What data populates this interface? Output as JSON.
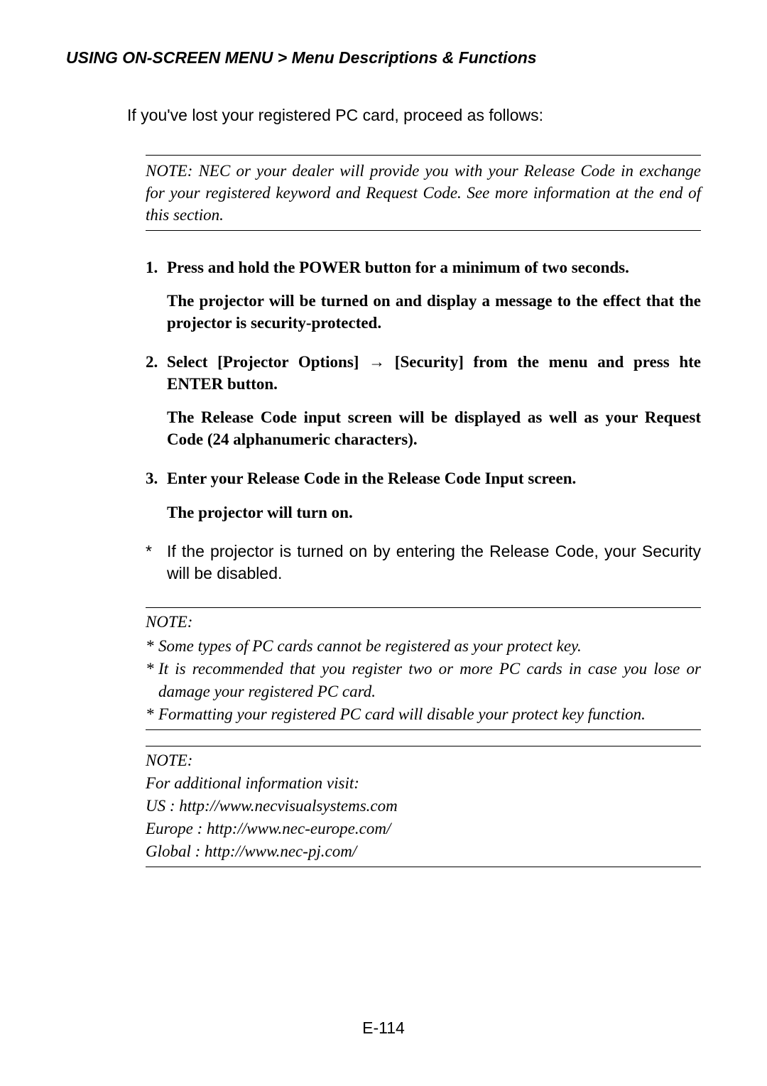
{
  "header": {
    "text": "USING ON-SCREEN MENU > Menu Descriptions & Functions"
  },
  "intro": "If you've lost your registered PC card, proceed as follows:",
  "note1": "NOTE: NEC or your dealer will provide you with your Release Code in exchange for your registered keyword and Request Code. See more information at the end of this section.",
  "steps": [
    {
      "num": "1.",
      "text": "Press and hold the POWER button for a minimum of two seconds.",
      "follow": "The projector will be turned on and display a message to the effect that the projector is security-protected."
    },
    {
      "num": "2.",
      "text": "Select [Projector Options] → [Security] from the menu and press hte ENTER button.",
      "follow": "The Release Code input screen will be displayed as well as your Request Code (24 alphanumeric characters)."
    },
    {
      "num": "3.",
      "text": "Enter your Release Code in the Release Code Input screen.",
      "follow": "The projector will turn on."
    }
  ],
  "asterisk": {
    "mark": "*",
    "text": "If the projector is turned on by entering the Release Code, your Security will be disabled."
  },
  "note2": {
    "heading": "NOTE:",
    "items": [
      "Some types of PC cards cannot be registered as your protect key.",
      "It is recommended that you register two or more PC cards in case you lose or damage your registered PC card.",
      "Formatting your registered PC card will disable your protect key function."
    ],
    "star": "*"
  },
  "note3": {
    "heading": "NOTE:",
    "lines": [
      "For additional information visit:",
      "US : http://www.necvisualsystems.com",
      "Europe : http://www.nec-europe.com/",
      "Global : http://www.nec-pj.com/"
    ]
  },
  "pageNumber": "E-114",
  "style": {
    "background_color": "#ffffff",
    "text_color": "#000000",
    "header_font": "Arial",
    "header_fontsize": 23,
    "body_font": "Georgia",
    "body_fontsize": 23,
    "note_font_style": "italic",
    "rule_color": "#000000",
    "rule_width": 1.5
  }
}
